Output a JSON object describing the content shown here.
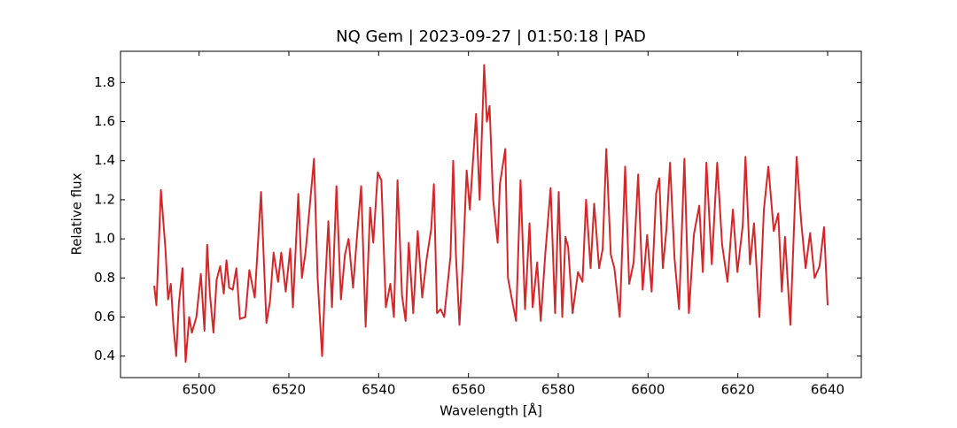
{
  "chart_data": {
    "type": "line",
    "title": "NQ Gem | 2023-09-27 | 01:50:18 | PAD",
    "x_label": "Wavelength [Å]",
    "y_label": "Relative flux",
    "xlim": [
      6482.5,
      6647.5
    ],
    "ylim": [
      0.29,
      1.96
    ],
    "xticks": [
      6500,
      6520,
      6540,
      6560,
      6580,
      6600,
      6620,
      6640
    ],
    "yticks": [
      0.4,
      0.6,
      0.8,
      1.0,
      1.2,
      1.4,
      1.6,
      1.8
    ],
    "x": [
      6490.0,
      6490.5,
      6491.5,
      6492.5,
      6493.1,
      6493.7,
      6494.3,
      6494.9,
      6495.5,
      6496.3,
      6497.0,
      6497.8,
      6498.4,
      6499.4,
      6500.4,
      6501.2,
      6501.8,
      6502.4,
      6503.2,
      6503.9,
      6504.7,
      6505.5,
      6506.1,
      6506.7,
      6507.5,
      6508.3,
      6509.1,
      6510.3,
      6511.2,
      6512.4,
      6513.8,
      6515.0,
      6515.8,
      6516.6,
      6517.6,
      6518.3,
      6519.3,
      6520.3,
      6520.9,
      6522.1,
      6522.9,
      6523.7,
      6524.5,
      6525.6,
      6526.4,
      6527.4,
      6528.0,
      6528.8,
      6529.6,
      6530.6,
      6531.6,
      6532.5,
      6533.3,
      6534.3,
      6535.3,
      6536.1,
      6537.1,
      6538.1,
      6538.8,
      6539.8,
      6540.6,
      6541.6,
      6542.6,
      6543.4,
      6544.2,
      6545.2,
      6546.0,
      6546.7,
      6547.7,
      6548.7,
      6549.7,
      6550.7,
      6551.7,
      6552.3,
      6553.0,
      6553.8,
      6554.6,
      6556.0,
      6556.6,
      6557.2,
      6558.0,
      6558.8,
      6559.6,
      6560.3,
      6561.7,
      6562.5,
      6563.5,
      6564.1,
      6564.7,
      6565.5,
      6566.5,
      6567.0,
      6568.2,
      6568.8,
      6569.6,
      6570.6,
      6571.6,
      6572.6,
      6573.6,
      6574.3,
      6575.3,
      6576.1,
      6577.1,
      6578.3,
      6579.3,
      6580.1,
      6580.9,
      6581.6,
      6582.2,
      6583.2,
      6584.4,
      6585.4,
      6586.2,
      6587.2,
      6588.0,
      6589.1,
      6589.9,
      6590.7,
      6591.7,
      6592.5,
      6593.7,
      6594.9,
      6595.8,
      6596.8,
      6597.8,
      6598.8,
      6599.8,
      6600.8,
      6601.8,
      6602.5,
      6603.3,
      6604.1,
      6604.9,
      6605.9,
      6606.9,
      6608.1,
      6609.1,
      6610.2,
      6611.4,
      6612.2,
      6613.0,
      6614.2,
      6615.4,
      6616.5,
      6617.7,
      6618.9,
      6619.9,
      6621.1,
      6621.7,
      6622.7,
      6623.6,
      6624.8,
      6625.8,
      6626.8,
      6628.0,
      6629.0,
      6629.8,
      6630.5,
      6631.7,
      6633.1,
      6634.1,
      6635.1,
      6636.1,
      6637.1,
      6638.2,
      6639.2,
      6640.0
    ],
    "series": [
      {
        "color": "#d62728",
        "values": [
          0.76,
          0.66,
          1.25,
          0.95,
          0.69,
          0.77,
          0.55,
          0.4,
          0.67,
          0.85,
          0.37,
          0.6,
          0.52,
          0.6,
          0.82,
          0.53,
          0.97,
          0.72,
          0.52,
          0.79,
          0.86,
          0.72,
          0.89,
          0.75,
          0.74,
          0.85,
          0.59,
          0.6,
          0.84,
          0.7,
          1.24,
          0.57,
          0.68,
          0.93,
          0.78,
          0.93,
          0.73,
          0.95,
          0.65,
          1.23,
          0.8,
          0.93,
          1.13,
          1.41,
          0.8,
          0.4,
          0.73,
          1.09,
          0.65,
          1.27,
          0.69,
          0.92,
          1.0,
          0.75,
          1.05,
          1.27,
          0.55,
          1.16,
          0.98,
          1.34,
          1.3,
          0.65,
          0.77,
          0.6,
          1.3,
          0.71,
          0.58,
          0.98,
          0.62,
          1.04,
          0.7,
          0.9,
          1.05,
          1.28,
          0.62,
          0.64,
          0.6,
          0.91,
          1.4,
          0.92,
          0.56,
          0.9,
          1.35,
          1.15,
          1.64,
          1.2,
          1.89,
          1.6,
          1.68,
          1.2,
          0.98,
          1.28,
          1.46,
          0.8,
          0.7,
          0.58,
          1.3,
          0.64,
          1.08,
          0.65,
          0.88,
          0.58,
          0.92,
          1.26,
          0.62,
          1.24,
          0.6,
          1.01,
          0.96,
          0.62,
          0.83,
          0.78,
          1.2,
          0.85,
          1.18,
          0.85,
          0.95,
          1.46,
          0.92,
          0.85,
          0.6,
          1.37,
          0.77,
          0.88,
          1.33,
          0.74,
          1.02,
          0.73,
          1.23,
          1.31,
          0.85,
          1.05,
          1.39,
          0.9,
          0.64,
          1.41,
          0.62,
          1.02,
          1.17,
          0.83,
          1.39,
          0.87,
          1.39,
          0.97,
          0.78,
          1.15,
          0.83,
          1.07,
          1.42,
          0.87,
          1.08,
          0.6,
          1.15,
          1.37,
          1.04,
          1.13,
          0.73,
          1.01,
          0.56,
          1.42,
          1.09,
          0.85,
          1.03,
          0.8,
          0.86,
          1.06,
          0.66
        ]
      }
    ]
  }
}
